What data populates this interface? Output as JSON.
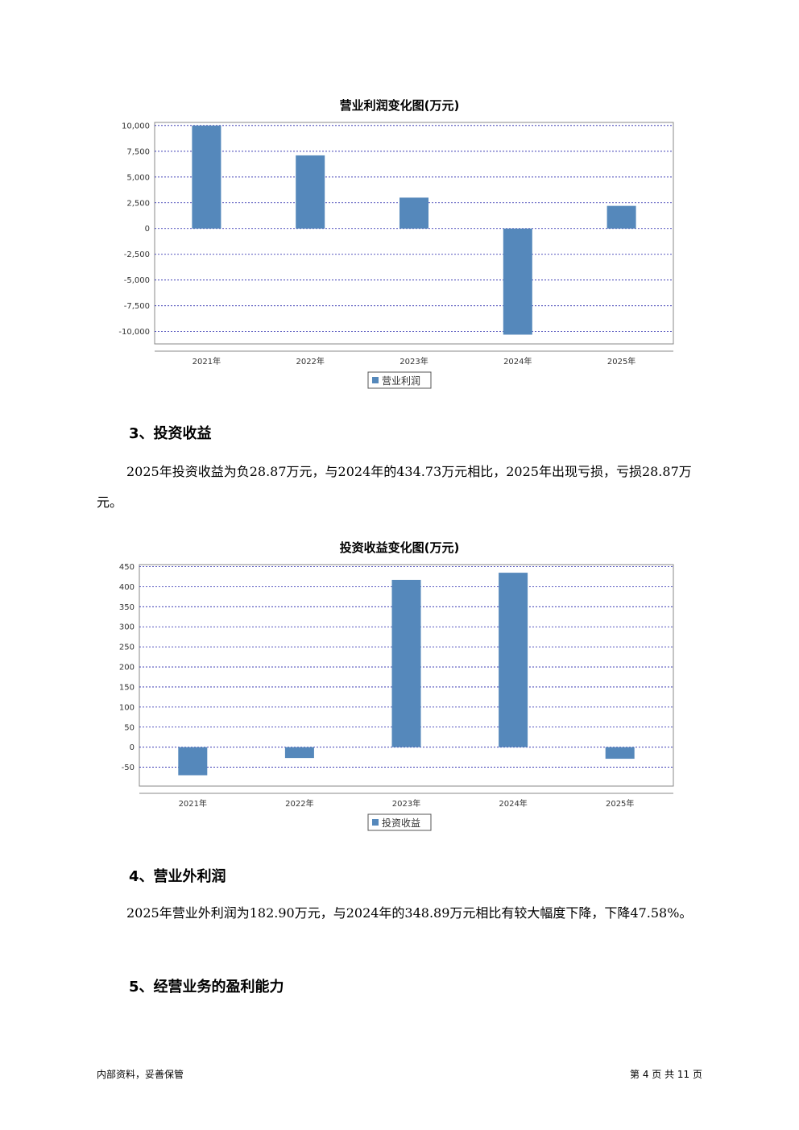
{
  "charts": [
    {
      "title": "营业利润变化图(万元)",
      "y_tick_labels": [
        "10,000",
        "7,500",
        "5,000",
        "2,500",
        "0",
        "-2,500",
        "-5,000",
        "-7,500",
        "-10,000"
      ],
      "legend": "营业利润",
      "bar_color": "#5588bb",
      "grid_color": "#2222aa"
    },
    {
      "title": "投资收益变化图(万元)",
      "y_tick_labels": [
        "450",
        "400",
        "350",
        "300",
        "250",
        "200",
        "150",
        "100",
        "50",
        "0",
        "-50"
      ],
      "legend": "投资收益",
      "bar_color": "#5588bb",
      "grid_color": "#2222aa"
    }
  ],
  "chart_data": [
    {
      "type": "bar",
      "title": "营业利润变化图(万元)",
      "categories": [
        "2021年",
        "2022年",
        "2023年",
        "2024年",
        "2025年"
      ],
      "series": [
        {
          "name": "营业利润",
          "values": [
            10000,
            7100,
            3000,
            -10300,
            2200
          ]
        }
      ],
      "ylim": [
        -11200,
        10300
      ],
      "yticks": [
        10000,
        7500,
        5000,
        2500,
        0,
        -2500,
        -5000,
        -7500,
        -10000
      ],
      "grid": true,
      "legend_position": "bottom"
    },
    {
      "type": "bar",
      "title": "投资收益变化图(万元)",
      "categories": [
        "2021年",
        "2022年",
        "2023年",
        "2024年",
        "2025年"
      ],
      "series": [
        {
          "name": "投资收益",
          "values": [
            -70,
            -27,
            417,
            434.73,
            -28.87
          ]
        }
      ],
      "ylim": [
        -97,
        455
      ],
      "yticks": [
        450,
        400,
        350,
        300,
        250,
        200,
        150,
        100,
        50,
        0,
        -50
      ],
      "grid": true,
      "legend_position": "bottom"
    }
  ],
  "section3": {
    "heading": "3、投资收益",
    "text": "2025年投资收益为负28.87万元，与2024年的434.73万元相比，2025年出现亏损，亏损28.87万元。"
  },
  "section4": {
    "heading": "4、营业外利润",
    "text": "2025年营业外利润为182.90万元，与2024年的348.89万元相比有较大幅度下降，下降47.58%。"
  },
  "section5": {
    "heading": "5、经营业务的盈利能力"
  },
  "footer": {
    "left": "内部资料，妥善保管",
    "right": "第 4 页  共 11 页"
  }
}
